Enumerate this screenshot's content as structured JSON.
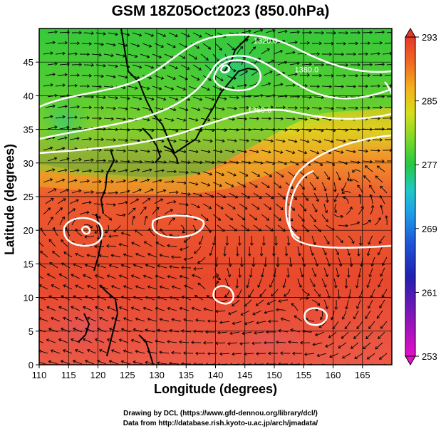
{
  "title": "GSM 18Z05Oct2023 (850.0hPa)",
  "xlabel": "Longitude (degrees)",
  "ylabel": "Latitude  (degrees)",
  "credits": {
    "line1": "Drawing by DCL (https://www.gfd-dennou.org/library/dcl/)",
    "line2": "Data from http://database.rish.kyoto-u.ac.jp/arch/jmadata/"
  },
  "chart_data": {
    "type": "heatmap",
    "xlim": [
      110,
      170
    ],
    "ylim": [
      0,
      50
    ],
    "x_ticks": [
      "110",
      "115",
      "120",
      "125",
      "130",
      "135",
      "140",
      "145",
      "150",
      "155",
      "160",
      "165"
    ],
    "y_ticks": [
      "0",
      "5",
      "10",
      "15",
      "20",
      "25",
      "30",
      "35",
      "40",
      "45"
    ],
    "grid": true,
    "colorbar": {
      "range": [
        253,
        293
      ],
      "ticks": [
        "253",
        "261",
        "269",
        "277",
        "285",
        "293"
      ],
      "colors": [
        "#e60ec8",
        "#8a15b8",
        "#2020b0",
        "#1f52d8",
        "#1ea0e8",
        "#21c8c8",
        "#25c845",
        "#7dd828",
        "#d4df1c",
        "#f5b01c",
        "#f06a22",
        "#e8382a"
      ]
    },
    "contour_labels": [
      {
        "text": "1320.0",
        "lon": 148.5,
        "lat": 47.8
      },
      {
        "text": "1360.0",
        "lon": 147.5,
        "lat": 37.5
      },
      {
        "text": "1380.0",
        "lon": 155.5,
        "lat": 43.5
      }
    ]
  }
}
